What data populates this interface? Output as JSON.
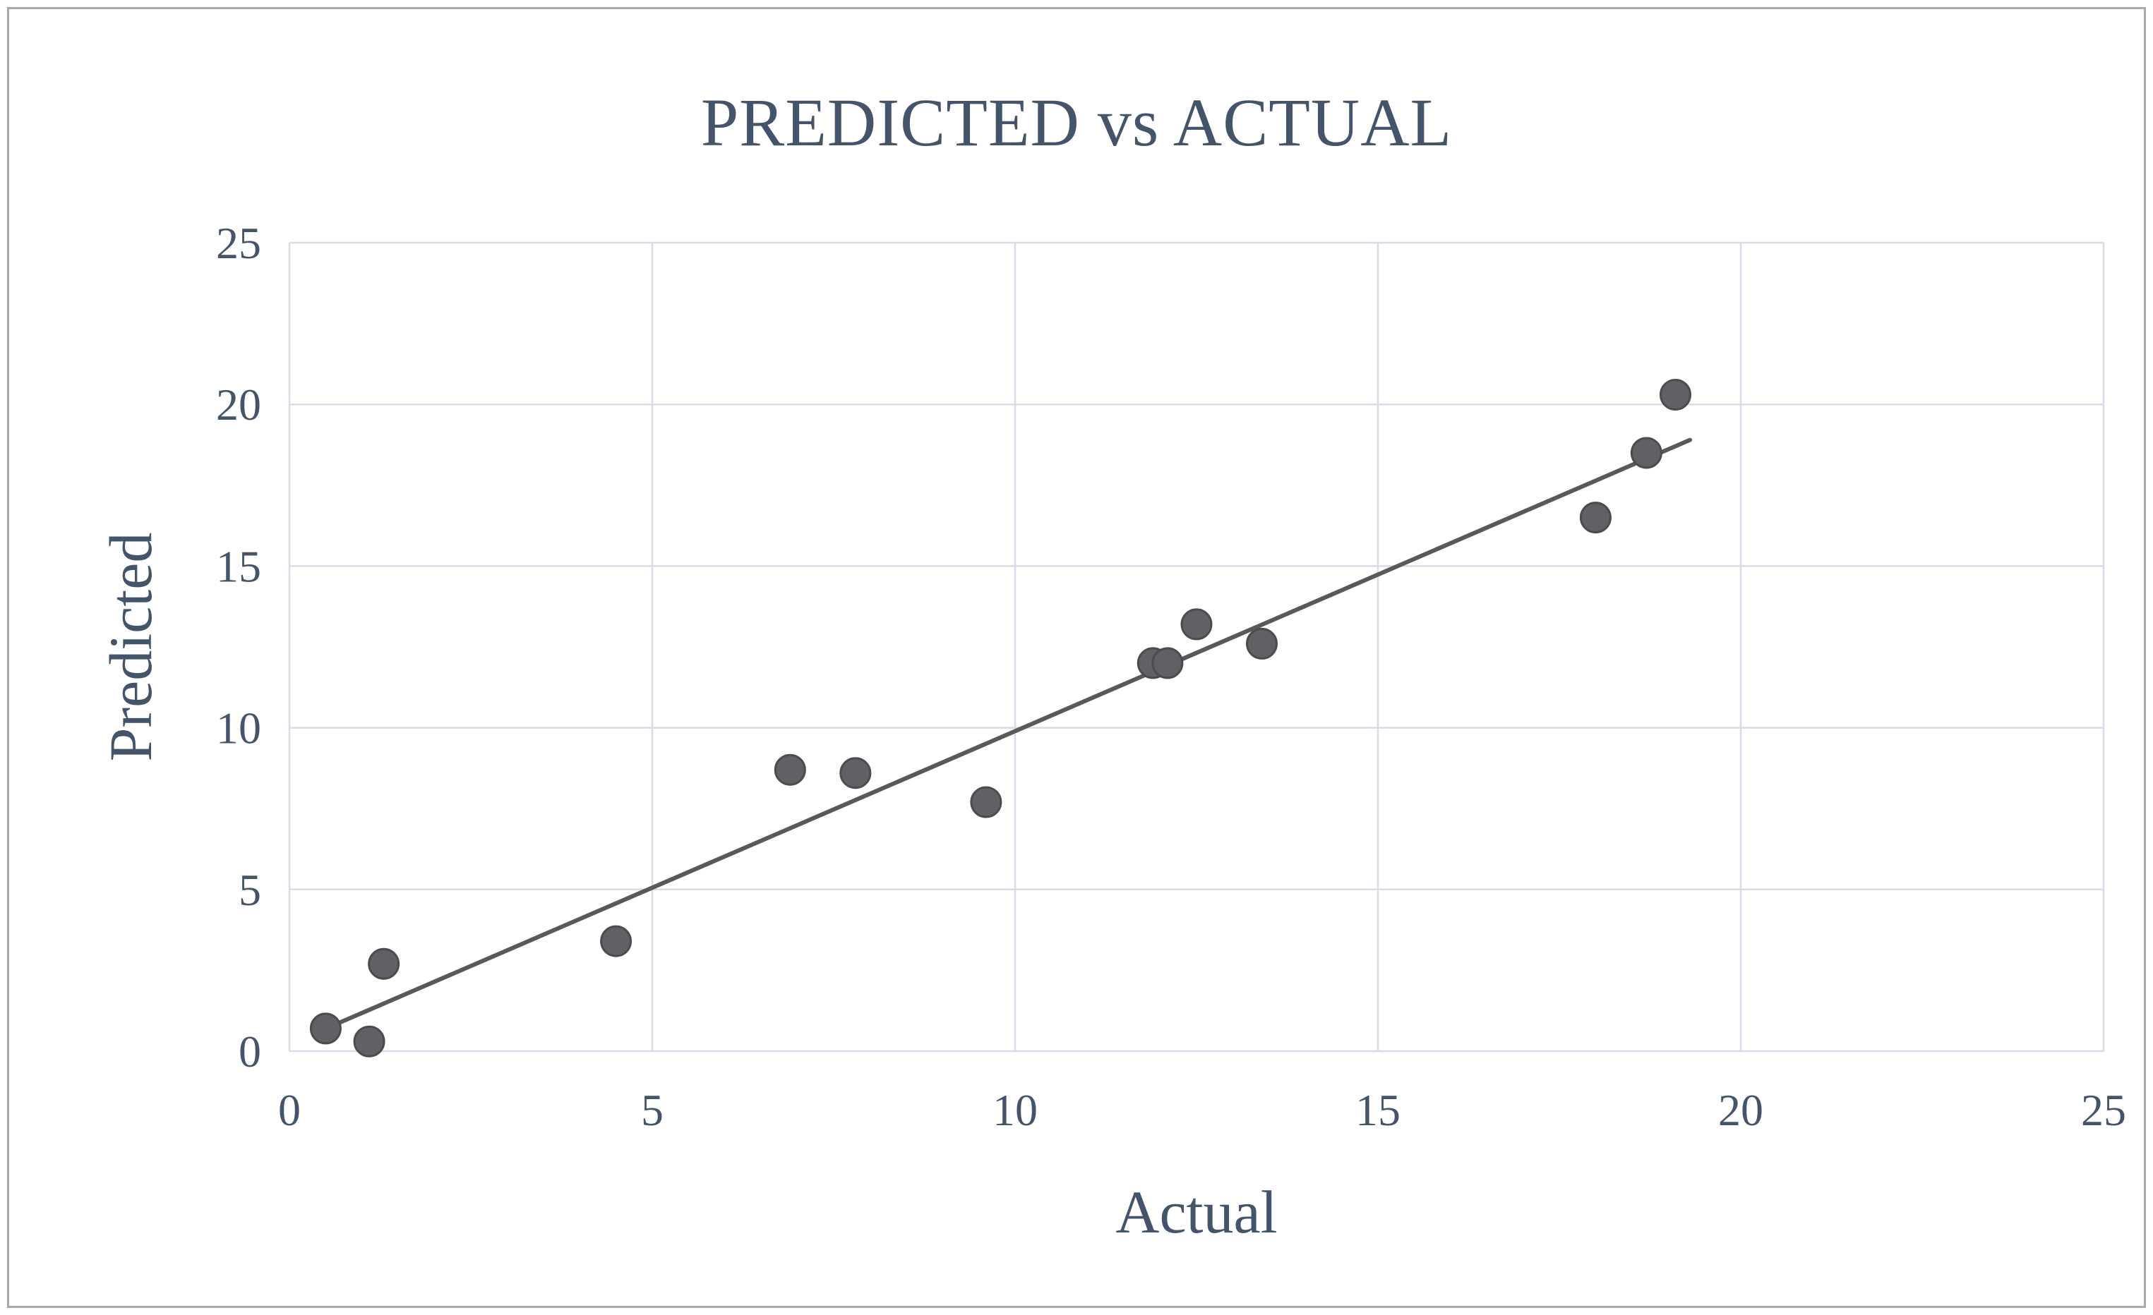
{
  "chart": {
    "title": "PREDICTED vs ACTUAL",
    "xlabel": "Actual",
    "ylabel": "Predicted"
  },
  "chart_data": {
    "type": "scatter",
    "title": "PREDICTED vs ACTUAL",
    "xlabel": "Actual",
    "ylabel": "Predicted",
    "xlim": [
      0,
      25
    ],
    "ylim": [
      0,
      25
    ],
    "xticks": [
      0,
      5,
      10,
      15,
      20,
      25
    ],
    "yticks": [
      0,
      5,
      10,
      15,
      20,
      25
    ],
    "grid": true,
    "legend": "none",
    "points": [
      {
        "x": 0.5,
        "y": 0.7
      },
      {
        "x": 1.1,
        "y": 0.3
      },
      {
        "x": 1.3,
        "y": 2.7
      },
      {
        "x": 4.5,
        "y": 3.4
      },
      {
        "x": 6.9,
        "y": 8.7
      },
      {
        "x": 7.8,
        "y": 8.6
      },
      {
        "x": 9.6,
        "y": 7.7
      },
      {
        "x": 11.9,
        "y": 12.0
      },
      {
        "x": 12.1,
        "y": 12.0
      },
      {
        "x": 12.5,
        "y": 13.2
      },
      {
        "x": 13.4,
        "y": 12.6
      },
      {
        "x": 18.0,
        "y": 16.5
      },
      {
        "x": 18.7,
        "y": 18.5
      },
      {
        "x": 19.1,
        "y": 20.3
      }
    ],
    "trendline": {
      "x1": 0.4,
      "y1": 0.6,
      "x2": 19.3,
      "y2": 18.9
    },
    "colors": {
      "point_fill": "#5f6164",
      "point_stroke": "#4a4c4f",
      "trendline": "#595959",
      "gridline": "#d6dce8",
      "axis_line": "#d6dce8",
      "text": "#44546a",
      "frame_border": "#a9a9a9"
    }
  }
}
